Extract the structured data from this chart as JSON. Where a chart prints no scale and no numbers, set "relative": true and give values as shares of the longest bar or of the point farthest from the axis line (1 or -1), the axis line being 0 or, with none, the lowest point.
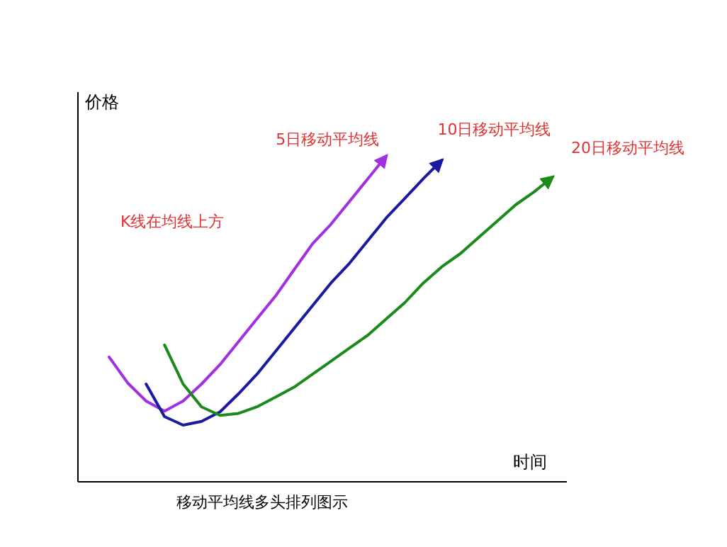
{
  "chart_data": {
    "type": "line",
    "relative": true,
    "ylabel": "价格",
    "xlabel": "时间",
    "annotations": [
      "K线在均线上方",
      "移动平均线多头排列图示"
    ],
    "marker": "none",
    "line_style": "solid",
    "categories": [
      null,
      null,
      null,
      null,
      null,
      null,
      null,
      null,
      null,
      null,
      null,
      null,
      null,
      null,
      null,
      null,
      null,
      null,
      null,
      null,
      null,
      null,
      null,
      null,
      null
    ],
    "series": [
      {
        "name": "5日移动平均线",
        "color": "#a030e0",
        "values": [
          0.383,
          0.304,
          0.248,
          0.217,
          0.248,
          0.3,
          0.36,
          0.43,
          0.5,
          0.57,
          0.65,
          0.73,
          0.79,
          0.86,
          0.93,
          1.0,
          null,
          null,
          null,
          null,
          null,
          null,
          null,
          null,
          null
        ]
      },
      {
        "name": "10日移动平均线",
        "color": "#1a1aa0",
        "values": [
          null,
          null,
          0.3,
          0.2,
          0.174,
          0.185,
          0.215,
          0.27,
          0.33,
          0.4,
          0.47,
          0.54,
          0.61,
          0.67,
          0.74,
          0.81,
          0.87,
          0.93,
          0.987,
          null,
          null,
          null,
          null,
          null,
          null
        ]
      },
      {
        "name": "20日移动平均线",
        "color": "#1a8a1a",
        "values": [
          null,
          null,
          null,
          0.42,
          0.3,
          0.23,
          0.204,
          0.21,
          0.23,
          0.26,
          0.29,
          0.33,
          0.37,
          0.41,
          0.45,
          0.5,
          0.55,
          0.61,
          0.66,
          0.7,
          0.75,
          0.8,
          0.85,
          0.89,
          0.935
        ]
      }
    ]
  }
}
